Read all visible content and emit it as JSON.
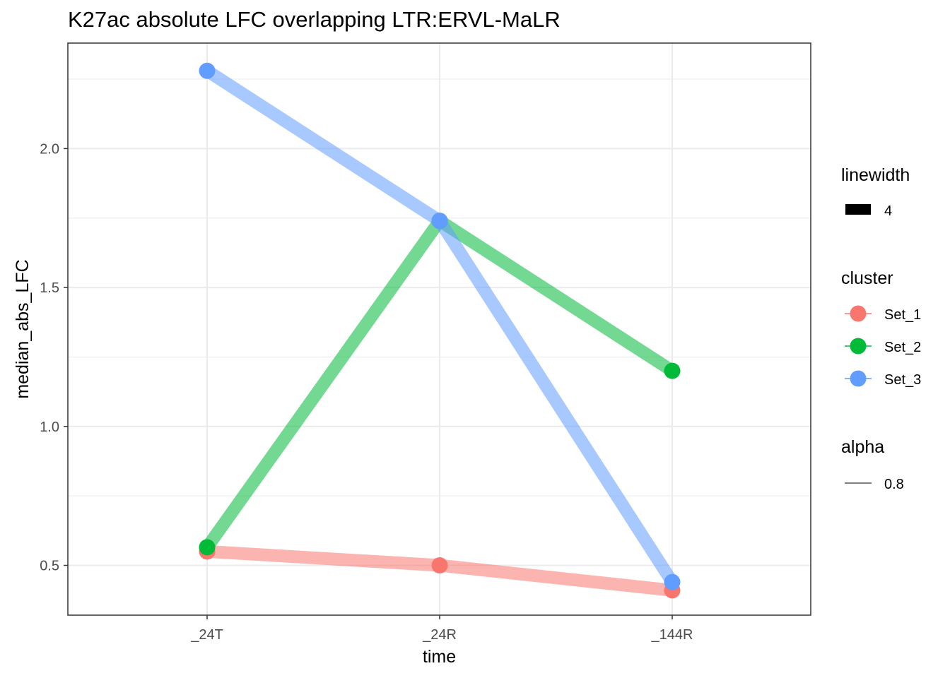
{
  "chart_data": {
    "type": "line",
    "title": "K27ac absolute LFC overlapping LTR:ERVL-MaLR",
    "xlabel": "time",
    "ylabel": "median_abs_LFC",
    "categories": [
      "_24T",
      "_24R",
      "_144R"
    ],
    "y_ticks": [
      "0.5",
      "1.0",
      "1.5",
      "2.0"
    ],
    "ylim": [
      0.33,
      2.36
    ],
    "grid": true,
    "legend_position": "right",
    "series": [
      {
        "name": "Set_1",
        "color": "#F8766D",
        "values": [
          0.55,
          0.5,
          0.41
        ]
      },
      {
        "name": "Set_2",
        "color": "#00BA38",
        "values": [
          0.565,
          1.74,
          1.2
        ]
      },
      {
        "name": "Set_3",
        "color": "#619CFF",
        "values": [
          2.28,
          1.74,
          0.44
        ]
      }
    ],
    "legends": {
      "linewidth": {
        "title": "linewidth",
        "label": "4"
      },
      "cluster": {
        "title": "cluster",
        "labels": [
          "Set_1",
          "Set_2",
          "Set_3"
        ]
      },
      "alpha": {
        "title": "alpha",
        "label": "0.8"
      }
    }
  }
}
